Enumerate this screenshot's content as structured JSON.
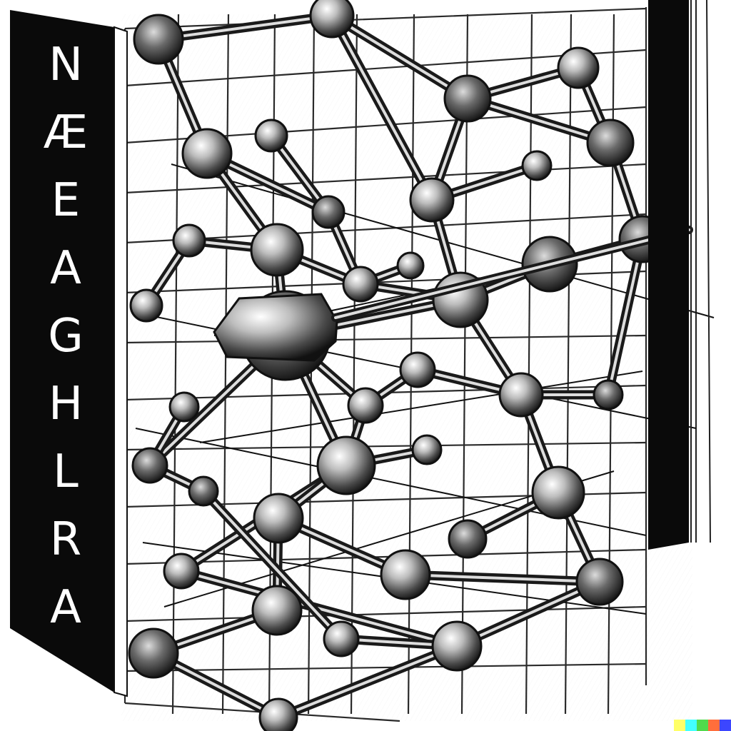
{
  "spine": {
    "letters": [
      "N",
      "Æ",
      "E",
      "A",
      "G",
      "H",
      "L",
      "R",
      "A"
    ]
  },
  "palette": {
    "ink": "#111111",
    "paper": "#ffffff",
    "panel": "#0a0a0a"
  },
  "watermark": {
    "colors": [
      "#ffff66",
      "#42ffff",
      "#51da4c",
      "#ff6e3c",
      "#3c46ff"
    ]
  },
  "icons": {
    "structure": "lattice-model-icon"
  }
}
